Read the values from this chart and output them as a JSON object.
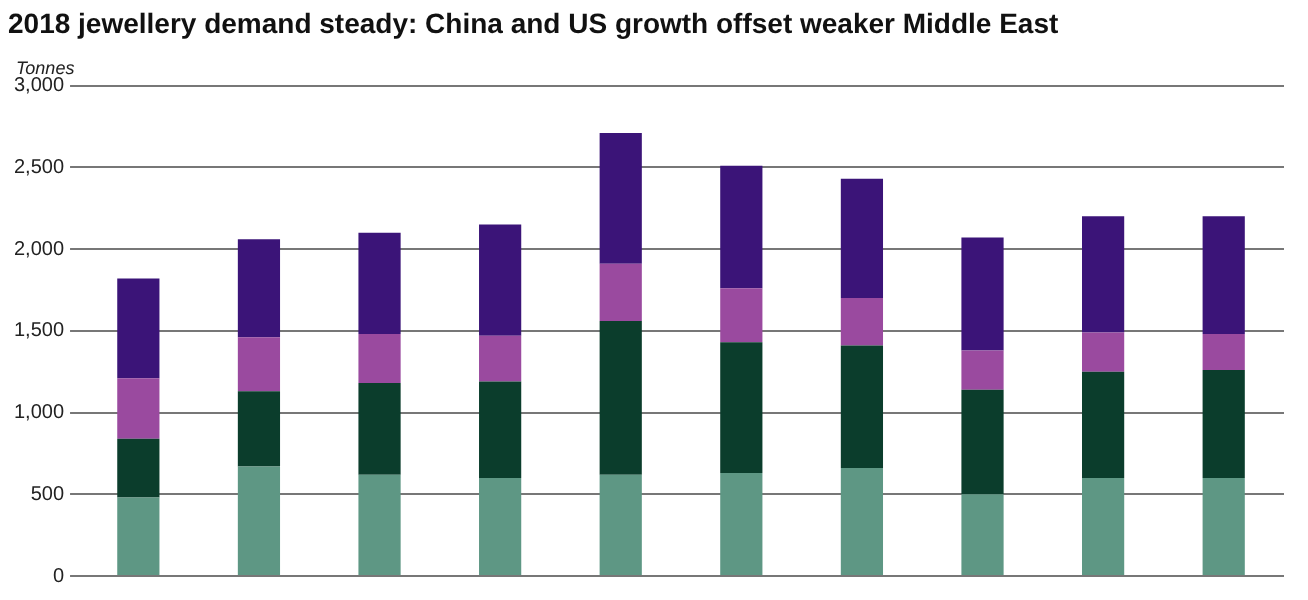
{
  "chart_data": {
    "type": "bar",
    "title": "2018 jewellery demand steady: China and US growth offset weaker Middle East",
    "ylabel": "Tonnes",
    "categories": [
      null,
      null,
      null,
      null,
      null,
      null,
      null,
      null,
      null,
      null
    ],
    "stacked": true,
    "series": [
      {
        "color": "#5e9784",
        "values": [
          480,
          670,
          620,
          600,
          620,
          630,
          660,
          500,
          600,
          600
        ]
      },
      {
        "color": "#0b3d2c",
        "values": [
          360,
          460,
          560,
          590,
          940,
          800,
          750,
          640,
          650,
          660
        ]
      },
      {
        "color": "#9a4a9f",
        "values": [
          370,
          330,
          300,
          280,
          350,
          330,
          290,
          240,
          240,
          220
        ]
      },
      {
        "color": "#3b1478",
        "values": [
          610,
          600,
          620,
          680,
          800,
          750,
          730,
          690,
          710,
          720
        ]
      }
    ],
    "ylim": [
      0,
      3000
    ],
    "yticks": [
      0,
      500,
      {
        "value": 1000,
        "label": "1,000"
      },
      {
        "value": 1500,
        "label": "1,500"
      },
      {
        "value": 2000,
        "label": "2,000"
      },
      {
        "value": 2500,
        "label": "2,500"
      },
      {
        "value": 3000,
        "label": "3,000"
      }
    ],
    "grid": "y",
    "legend": false
  }
}
